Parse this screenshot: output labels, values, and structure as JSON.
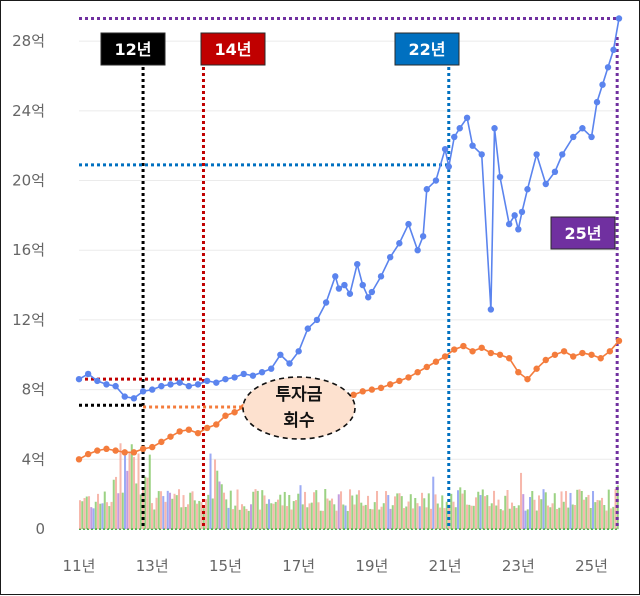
{
  "chart_data": {
    "type": "line",
    "title": "",
    "xlabel": "",
    "ylabel": "",
    "x_ticks": [
      "11년",
      "13년",
      "15년",
      "17년",
      "19년",
      "21년",
      "23년",
      "25년"
    ],
    "y_ticks": [
      "0",
      "4억",
      "8억",
      "12억",
      "16억",
      "20억",
      "24억",
      "28억"
    ],
    "xlim": [
      2011.0,
      2025.75
    ],
    "ylim": [
      0,
      29.5
    ],
    "grid": true,
    "series": [
      {
        "color": "#5b84ee",
        "x": [
          2011.0,
          2011.25,
          2011.5,
          2011.75,
          2012.0,
          2012.25,
          2012.5,
          2012.75,
          2013.0,
          2013.25,
          2013.5,
          2013.75,
          2014.0,
          2014.25,
          2014.5,
          2014.75,
          2015.0,
          2015.25,
          2015.5,
          2015.75,
          2016.0,
          2016.25,
          2016.5,
          2016.75,
          2017.0,
          2017.25,
          2017.5,
          2017.75,
          2018.0,
          2018.1,
          2018.25,
          2018.4,
          2018.6,
          2018.75,
          2018.9,
          2019.0,
          2019.25,
          2019.5,
          2019.75,
          2020.0,
          2020.25,
          2020.4,
          2020.5,
          2020.75,
          2021.0,
          2021.1,
          2021.25,
          2021.4,
          2021.6,
          2021.75,
          2022.0,
          2022.25,
          2022.35,
          2022.5,
          2022.75,
          2022.9,
          2023.0,
          2023.1,
          2023.25,
          2023.5,
          2023.75,
          2024.0,
          2024.2,
          2024.5,
          2024.75,
          2025.0,
          2025.15,
          2025.3,
          2025.45,
          2025.6,
          2025.75
        ],
        "values": [
          8.6,
          8.9,
          8.5,
          8.3,
          8.2,
          7.6,
          7.5,
          7.9,
          8.0,
          8.2,
          8.3,
          8.4,
          8.2,
          8.3,
          8.5,
          8.4,
          8.6,
          8.7,
          8.9,
          8.8,
          9.0,
          9.2,
          10.0,
          9.5,
          10.2,
          11.5,
          12.0,
          13.0,
          14.5,
          13.8,
          14.0,
          13.5,
          15.2,
          14.0,
          13.3,
          13.6,
          14.5,
          15.6,
          16.4,
          17.5,
          16.0,
          16.8,
          19.5,
          20.0,
          21.8,
          20.8,
          22.5,
          23.0,
          23.6,
          22.0,
          21.5,
          12.6,
          23.0,
          20.2,
          17.5,
          18.0,
          17.2,
          18.2,
          19.5,
          21.5,
          19.8,
          20.5,
          21.5,
          22.5,
          23.0,
          22.5,
          24.5,
          25.5,
          26.5,
          27.5,
          29.3
        ]
      },
      {
        "color": "#f47c3c",
        "x": [
          2011.0,
          2011.25,
          2011.5,
          2011.75,
          2012.0,
          2012.25,
          2012.5,
          2012.75,
          2013.0,
          2013.25,
          2013.5,
          2013.75,
          2014.0,
          2014.25,
          2014.5,
          2014.75,
          2015.0,
          2015.25,
          2015.5,
          2015.75,
          2016.0,
          2016.25,
          2016.5,
          2016.75,
          2017.0,
          2017.25,
          2017.5,
          2017.75,
          2018.0,
          2018.25,
          2018.5,
          2018.75,
          2019.0,
          2019.25,
          2019.5,
          2019.75,
          2020.0,
          2020.25,
          2020.5,
          2020.75,
          2021.0,
          2021.25,
          2021.5,
          2021.75,
          2022.0,
          2022.25,
          2022.5,
          2022.75,
          2023.0,
          2023.25,
          2023.5,
          2023.75,
          2024.0,
          2024.25,
          2024.5,
          2024.75,
          2025.0,
          2025.25,
          2025.5,
          2025.75
        ],
        "values": [
          4.0,
          4.3,
          4.5,
          4.6,
          4.5,
          4.4,
          4.4,
          4.6,
          4.7,
          5.0,
          5.3,
          5.6,
          5.7,
          5.5,
          5.8,
          6.0,
          6.5,
          6.7,
          7.0,
          7.2,
          7.3,
          7.4,
          7.3,
          7.5,
          7.4,
          7.6,
          7.5,
          7.6,
          7.8,
          7.6,
          7.7,
          7.9,
          8.0,
          8.1,
          8.3,
          8.5,
          8.7,
          9.0,
          9.3,
          9.6,
          9.9,
          10.3,
          10.5,
          10.2,
          10.4,
          10.1,
          10.0,
          9.8,
          9.0,
          8.6,
          9.2,
          9.7,
          10.0,
          10.2,
          9.9,
          10.1,
          10.0,
          9.8,
          10.2,
          10.8
        ]
      }
    ],
    "reference_lines": [
      {
        "label": "12년",
        "x": 2012.75,
        "y": 7.1,
        "color": "#000000"
      },
      {
        "label": "14년",
        "x": 2014.4,
        "y": 8.6,
        "color": "#c00000"
      },
      {
        "label": "22년",
        "x": 2021.1,
        "y": 20.9,
        "color": "#0070c0"
      },
      {
        "label": "25년",
        "x": 2025.7,
        "y": 29.3,
        "color": "#7030a0"
      }
    ],
    "orange_reference_y": 7.0,
    "annotation": {
      "line1": "투자금",
      "line2": "회수"
    },
    "colors": {
      "grid": "#ebebeb",
      "tick_text": "#666666",
      "bars_orange": "#f4a090",
      "bars_green": "#7ac35a",
      "bars_blue": "#7b8ff0",
      "bars_purple": "#b07bd4",
      "annotation_fill": "#fde1cf"
    }
  }
}
